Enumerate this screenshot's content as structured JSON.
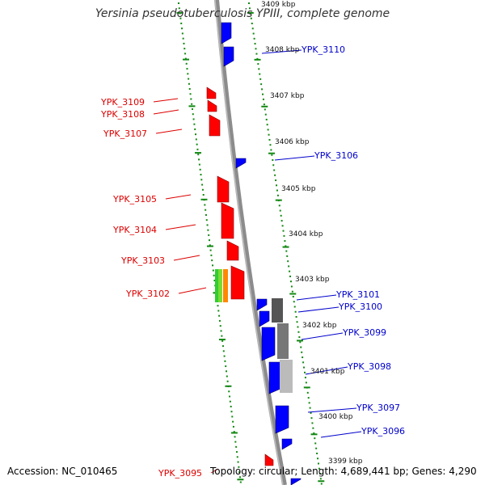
{
  "title": "Yersinia pseudotuberculosis YPIII, complete genome",
  "accession": "Accession: NC_010465",
  "topology": "Topology: circular; Length: 4,689,441 bp; Genes: 4,290",
  "colors": {
    "backbone": "#8c8c8c",
    "ticks": "#118811",
    "forward": "#ff0000",
    "reverse": "#0000ff",
    "forward_label": "#dd0000",
    "reverse_label": "#0000cc",
    "green_feature": "#33cc33",
    "orange_feature": "#ff8800",
    "gray_dark": "#777777",
    "gray_light": "#bbbbbb"
  },
  "scale_labels": [
    "3409 kbp",
    "3408 kbp",
    "3407 kbp",
    "3406 kbp",
    "3405 kbp",
    "3404 kbp",
    "3403 kbp",
    "3402 kbp",
    "3401 kbp",
    "3400 kbp",
    "3399 kbp"
  ],
  "genes_left": [
    {
      "name": "YPK_3109"
    },
    {
      "name": "YPK_3108"
    },
    {
      "name": "YPK_3107"
    },
    {
      "name": "YPK_3105"
    },
    {
      "name": "YPK_3104"
    },
    {
      "name": "YPK_3103"
    },
    {
      "name": "YPK_3102"
    },
    {
      "name": "YPK_3095"
    }
  ],
  "genes_right": [
    {
      "name": "YPK_3110"
    },
    {
      "name": "YPK_3106"
    },
    {
      "name": "YPK_3101"
    },
    {
      "name": "YPK_3100"
    },
    {
      "name": "YPK_3099"
    },
    {
      "name": "YPK_3098"
    },
    {
      "name": "YPK_3097"
    },
    {
      "name": "YPK_3096"
    }
  ]
}
